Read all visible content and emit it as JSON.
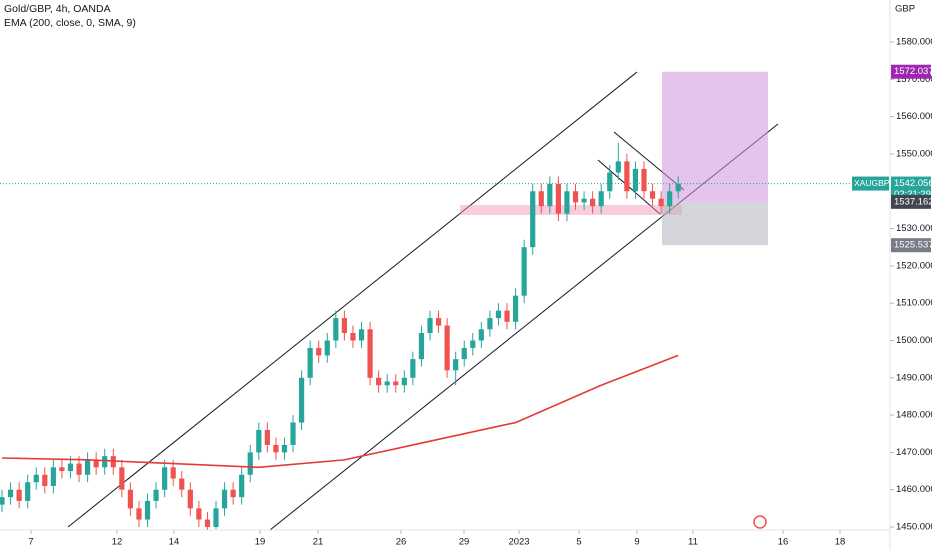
{
  "chart_data": {
    "type": "candlestick",
    "title": "Gold/GBP, 4h, OANDA",
    "subtitle": "EMA (200, close, 0, SMA, 9)",
    "currency": "GBP",
    "up_color": "#26a69a",
    "down_color": "#ef5350",
    "open": [
      1456,
      1458,
      1460,
      1457,
      1462,
      1464,
      1461,
      1466,
      1465,
      1467,
      1464,
      1468,
      1466,
      1469,
      1466,
      1460,
      1455,
      1452,
      1457,
      1460,
      1466,
      1463,
      1460,
      1455,
      1452,
      1450,
      1455,
      1460,
      1458,
      1464,
      1470,
      1476,
      1472,
      1470,
      1472,
      1478,
      1490,
      1498,
      1496,
      1500,
      1506,
      1502,
      1500,
      1503,
      1490,
      1488,
      1489,
      1488,
      1490,
      1495,
      1502,
      1506,
      1504,
      1492,
      1495,
      1498,
      1500,
      1503,
      1506,
      1508,
      1505,
      1512,
      1525,
      1540,
      1536,
      1542,
      1534,
      1540,
      1537,
      1538,
      1536,
      1540,
      1545,
      1548,
      1540,
      1546,
      1540,
      1538,
      1536,
      1540
    ],
    "high": [
      1460,
      1462,
      1462,
      1464,
      1466,
      1466,
      1468,
      1468,
      1469,
      1469,
      1470,
      1470,
      1471,
      1471,
      1468,
      1462,
      1457,
      1459,
      1462,
      1468,
      1468,
      1465,
      1462,
      1457,
      1454,
      1457,
      1462,
      1462,
      1466,
      1472,
      1478,
      1478,
      1474,
      1474,
      1480,
      1492,
      1500,
      1500,
      1502,
      1508,
      1508,
      1504,
      1505,
      1505,
      1492,
      1491,
      1491,
      1492,
      1497,
      1504,
      1508,
      1508,
      1506,
      1497,
      1500,
      1502,
      1505,
      1508,
      1510,
      1510,
      1514,
      1527,
      1542,
      1542,
      1544,
      1544,
      1542,
      1542,
      1540,
      1540,
      1542,
      1547,
      1553,
      1550,
      1548,
      1548,
      1542,
      1540,
      1542,
      1544
    ],
    "low": [
      1454,
      1456,
      1455,
      1455,
      1460,
      1459,
      1459,
      1463,
      1463,
      1462,
      1462,
      1464,
      1464,
      1464,
      1458,
      1453,
      1450,
      1450,
      1455,
      1458,
      1461,
      1458,
      1453,
      1450,
      1449,
      1449.5,
      1453,
      1456,
      1456,
      1462,
      1468,
      1470,
      1468,
      1468,
      1470,
      1476,
      1488,
      1494,
      1494,
      1498,
      1500,
      1498,
      1498,
      1488,
      1486,
      1486,
      1486,
      1486,
      1488,
      1493,
      1500,
      1502,
      1490,
      1488,
      1493,
      1496,
      1498,
      1501,
      1504,
      1503,
      1503,
      1510,
      1523,
      1534,
      1534,
      1532,
      1532,
      1535,
      1535,
      1534,
      1534,
      1538,
      1543,
      1538,
      1538,
      1538,
      1536,
      1534,
      1534,
      1538
    ],
    "close": [
      1458,
      1460,
      1457,
      1462,
      1464,
      1461,
      1466,
      1465,
      1467,
      1464,
      1468,
      1466,
      1469,
      1466,
      1460,
      1455,
      1452,
      1457,
      1460,
      1466,
      1463,
      1460,
      1455,
      1452,
      1450,
      1455,
      1460,
      1458,
      1464,
      1470,
      1476,
      1472,
      1470,
      1472,
      1478,
      1490,
      1498,
      1496,
      1500,
      1506,
      1502,
      1500,
      1503,
      1490,
      1488,
      1489,
      1488,
      1490,
      1495,
      1502,
      1506,
      1504,
      1492,
      1495,
      1498,
      1500,
      1503,
      1506,
      1508,
      1505,
      1512,
      1525,
      1540,
      1536,
      1542,
      1534,
      1540,
      1537,
      1538,
      1536,
      1540,
      1545,
      1548,
      1540,
      1546,
      1540,
      1538,
      1536,
      1540,
      1542
    ],
    "ema": {
      "color": "#e53935",
      "x": [
        0,
        10,
        20,
        30,
        40,
        50,
        60,
        70,
        79
      ],
      "values": [
        1468.5,
        1468,
        1467,
        1466,
        1468,
        1473,
        1478,
        1488,
        1496
      ]
    },
    "xlim": [
      -0.234,
      103.74
    ],
    "xticks": [
      {
        "value": 3.39,
        "label": "7"
      },
      {
        "value": 13.43,
        "label": "12"
      },
      {
        "value": 20.09,
        "label": "14"
      },
      {
        "value": 30.14,
        "label": "19"
      },
      {
        "value": 36.92,
        "label": "21"
      },
      {
        "value": 46.61,
        "label": "26"
      },
      {
        "value": 53.97,
        "label": "29"
      },
      {
        "value": 60.4,
        "label": "2023"
      },
      {
        "value": 67.41,
        "label": "5"
      },
      {
        "value": 74.18,
        "label": "9"
      },
      {
        "value": 80.72,
        "label": "11"
      },
      {
        "value": 91.24,
        "label": "16"
      },
      {
        "value": 97.9,
        "label": "18"
      }
    ],
    "ylim": [
      1449.2,
      1591.26
    ],
    "yticks": [
      {
        "value": 1450,
        "label": "1450.000"
      },
      {
        "value": 1460,
        "label": "1460.000"
      },
      {
        "value": 1470,
        "label": "1470.000"
      },
      {
        "value": 1480,
        "label": "1480.000"
      },
      {
        "value": 1490,
        "label": "1490.000"
      },
      {
        "value": 1500,
        "label": "1500.000"
      },
      {
        "value": 1510,
        "label": "1510.000"
      },
      {
        "value": 1520,
        "label": "1520.000"
      },
      {
        "value": 1530,
        "label": "1530.000"
      },
      {
        "value": 1550,
        "label": "1550.000"
      },
      {
        "value": 1560,
        "label": "1560.000"
      },
      {
        "value": 1570,
        "label": "1570.000"
      },
      {
        "value": 1580,
        "label": "1580.000"
      }
    ],
    "symbol": "XAUGBP",
    "last_price": 1542.056,
    "countdown": "02:21:29",
    "target": 1572.037,
    "entry": 1537.162,
    "stop": 1525.537
  }
}
